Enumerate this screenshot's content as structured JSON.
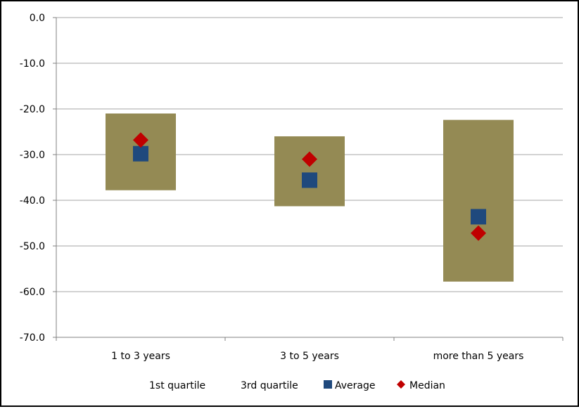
{
  "chart_data": {
    "type": "box",
    "categories": [
      "1 to 3 years",
      "3 to 5 years",
      "more than 5 years"
    ],
    "series": [
      {
        "name": "1st quartile",
        "values": [
          -37.8,
          -41.3,
          -57.8
        ]
      },
      {
        "name": "3rd quartile",
        "values": [
          -21.0,
          -26.0,
          -22.4
        ]
      },
      {
        "name": "Average",
        "values": [
          -29.8,
          -35.6,
          -43.6
        ]
      },
      {
        "name": "Median",
        "values": [
          -26.8,
          -31.0,
          -47.2
        ]
      }
    ],
    "ylim": [
      -70,
      0
    ],
    "yticks": [
      "0.0",
      "-10.0",
      "-20.0",
      "-30.0",
      "-40.0",
      "-50.0",
      "-60.0",
      "-70.0"
    ],
    "ytick_values": [
      0,
      -10,
      -20,
      -30,
      -40,
      -50,
      -60,
      -70
    ],
    "grid": true,
    "legend_position": "bottom",
    "colors": {
      "box": "#948A54",
      "average": "#1F497D",
      "median": "#C00000",
      "grid": "#A6A6A6",
      "axis": "#808080"
    }
  }
}
